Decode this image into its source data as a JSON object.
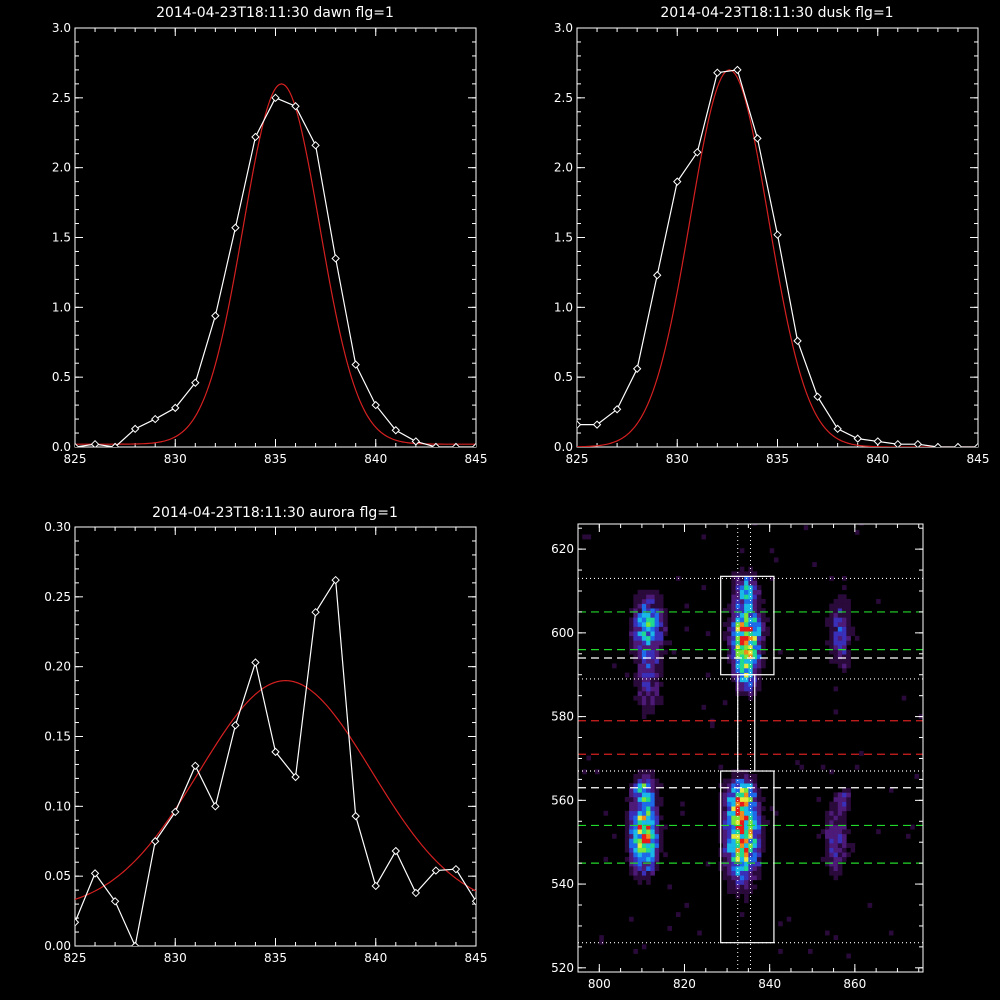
{
  "chart_data": [
    {
      "type": "line",
      "title": "2014-04-23T18:11:30 dawn flg=1",
      "xlim": [
        825,
        845
      ],
      "ylim": [
        0,
        3.0
      ],
      "xticks": [
        "825",
        "830",
        "835",
        "840",
        "845"
      ],
      "yticks": [
        "0.0",
        "0.5",
        "1.0",
        "1.5",
        "2.0",
        "2.5",
        "3.0"
      ],
      "series": [
        {
          "kind": "data",
          "color": "#ffffff",
          "marker": "diamond",
          "x": [
            825,
            826,
            827,
            828,
            829,
            830,
            831,
            832,
            833,
            834,
            835,
            836,
            837,
            838,
            839,
            840,
            841,
            842,
            843,
            844,
            845
          ],
          "y": [
            0.0,
            0.02,
            0.0,
            0.13,
            0.2,
            0.28,
            0.46,
            0.94,
            1.57,
            2.22,
            2.5,
            2.44,
            2.16,
            1.35,
            0.59,
            0.3,
            0.12,
            0.04,
            0.0,
            0.0,
            0.0
          ]
        },
        {
          "kind": "fit",
          "color": "#d42020",
          "gauss": {
            "a": 2.58,
            "mu": 835.3,
            "sigma": 1.9,
            "c": 0.02
          }
        }
      ]
    },
    {
      "type": "line",
      "title": "2014-04-23T18:11:30 dusk flg=1",
      "xlim": [
        825,
        845
      ],
      "ylim": [
        0,
        3.0
      ],
      "xticks": [
        "825",
        "830",
        "835",
        "840",
        "845"
      ],
      "yticks": [
        "0.0",
        "0.5",
        "1.0",
        "1.5",
        "2.0",
        "2.5",
        "3.0"
      ],
      "series": [
        {
          "kind": "data",
          "color": "#ffffff",
          "marker": "diamond",
          "x": [
            825,
            826,
            827,
            828,
            829,
            830,
            831,
            832,
            833,
            834,
            835,
            836,
            837,
            838,
            839,
            840,
            841,
            842,
            843,
            844,
            845
          ],
          "y": [
            0.16,
            0.16,
            0.27,
            0.56,
            1.23,
            1.9,
            2.11,
            2.68,
            2.7,
            2.21,
            1.52,
            0.76,
            0.36,
            0.13,
            0.06,
            0.04,
            0.02,
            0.02,
            0.0,
            0.0,
            0.0
          ]
        },
        {
          "kind": "fit",
          "color": "#d42020",
          "gauss": {
            "a": 2.7,
            "mu": 832.6,
            "sigma": 1.95,
            "c": 0.0
          }
        }
      ]
    },
    {
      "type": "line",
      "title": "2014-04-23T18:11:30 aurora flg=1",
      "xlim": [
        825,
        845
      ],
      "ylim": [
        0,
        0.3
      ],
      "xticks": [
        "825",
        "830",
        "835",
        "840",
        "845"
      ],
      "yticks": [
        "0.00",
        "0.05",
        "0.10",
        "0.15",
        "0.20",
        "0.25",
        "0.30"
      ],
      "series": [
        {
          "kind": "data",
          "color": "#ffffff",
          "marker": "diamond",
          "x": [
            825,
            826,
            827,
            828,
            829,
            830,
            831,
            832,
            833,
            834,
            835,
            836,
            837,
            838,
            839,
            840,
            841,
            842,
            843,
            844,
            845
          ],
          "y": [
            0.017,
            0.052,
            0.032,
            0.0,
            0.075,
            0.096,
            0.129,
            0.1,
            0.158,
            0.203,
            0.139,
            0.121,
            0.239,
            0.262,
            0.093,
            0.043,
            0.068,
            0.038,
            0.054,
            0.055,
            0.032
          ]
        },
        {
          "kind": "fit",
          "color": "#d42020",
          "gauss": {
            "a": 0.165,
            "mu": 835.5,
            "sigma": 4.3,
            "c": 0.025
          }
        }
      ]
    },
    {
      "type": "heatmap",
      "xlim": [
        795,
        876
      ],
      "ylim": [
        519,
        626
      ],
      "xticks": [
        "800",
        "820",
        "840",
        "860"
      ],
      "yticks": [
        "520",
        "540",
        "560",
        "580",
        "600",
        "620"
      ],
      "colorscale": [
        "#000000",
        "#2a0a3a",
        "#4d1a78",
        "#3a2fb8",
        "#1d6bea",
        "#19b8e8",
        "#20d890",
        "#7be53a",
        "#e8e83a",
        "#f08a1a",
        "#e81a1a"
      ],
      "blobs": [
        {
          "x": 810,
          "y": 551,
          "sx": 2.2,
          "sy": 5.5,
          "a": 1.0
        },
        {
          "x": 810,
          "y": 562,
          "sx": 1.8,
          "sy": 2.5,
          "a": 0.55
        },
        {
          "x": 811,
          "y": 601,
          "sx": 2.5,
          "sy": 5,
          "a": 0.6
        },
        {
          "x": 811,
          "y": 588,
          "sx": 2.2,
          "sy": 6,
          "a": 0.3
        },
        {
          "x": 833,
          "y": 550,
          "sx": 2.6,
          "sy": 6.5,
          "a": 1.0
        },
        {
          "x": 833,
          "y": 560,
          "sx": 2.2,
          "sy": 3.5,
          "a": 0.7
        },
        {
          "x": 834,
          "y": 599,
          "sx": 2.4,
          "sy": 5,
          "a": 1.0
        },
        {
          "x": 834,
          "y": 590,
          "sx": 1.8,
          "sy": 3.5,
          "a": 0.55
        },
        {
          "x": 834,
          "y": 610,
          "sx": 1.8,
          "sy": 3,
          "a": 0.45
        },
        {
          "x": 855,
          "y": 550,
          "sx": 2.0,
          "sy": 6,
          "a": 0.35
        },
        {
          "x": 856,
          "y": 600,
          "sx": 2.0,
          "sy": 6,
          "a": 0.35
        },
        {
          "x": 857,
          "y": 560,
          "sx": 1.2,
          "sy": 1.5,
          "a": 0.35
        }
      ],
      "green_dashed_y": [
        605,
        596,
        554,
        545
      ],
      "white_dashed_y": [
        594,
        563
      ],
      "red_dashed_y": [
        579,
        571
      ],
      "white_dotted_y": [
        613,
        589,
        567,
        526
      ],
      "white_dotted_x": [
        832.5,
        835.5
      ],
      "boxes": [
        {
          "x0": 828.5,
          "x1": 841,
          "y0": 590,
          "y1": 613.5
        },
        {
          "x0": 828.5,
          "x1": 841,
          "y0": 526,
          "y1": 567
        },
        {
          "x0": 832.5,
          "x1": 836.5,
          "y0": 567,
          "y1": 590
        }
      ]
    }
  ]
}
